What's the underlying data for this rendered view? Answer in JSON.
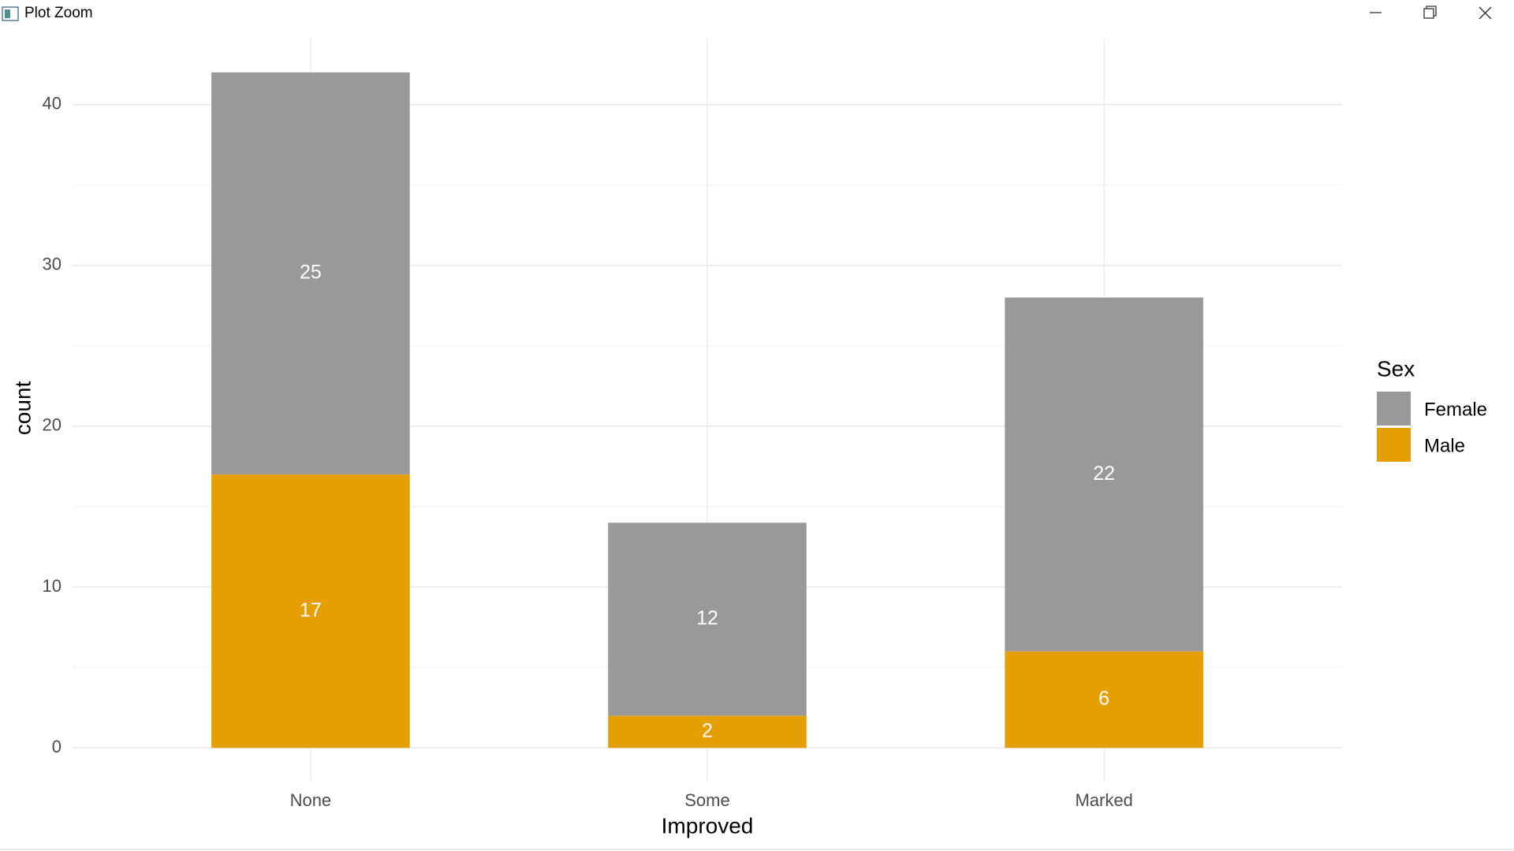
{
  "window": {
    "title": "Plot Zoom"
  },
  "chart_data": {
    "type": "bar",
    "stacked": true,
    "x_label": "Improved",
    "y_label": "count",
    "categories": [
      "None",
      "Some",
      "Marked"
    ],
    "series": [
      {
        "name": "Female",
        "color": "#999999",
        "values": [
          25,
          12,
          22
        ]
      },
      {
        "name": "Male",
        "color": "#E69F00",
        "values": [
          17,
          2,
          6
        ]
      }
    ],
    "ylim": [
      -2.1,
      44.1
    ],
    "yticks": [
      0,
      10,
      20,
      30,
      40
    ],
    "minor_yticks": [
      5,
      15,
      25,
      35
    ],
    "grid": true,
    "legend_title": "Sex",
    "legend": "right"
  }
}
